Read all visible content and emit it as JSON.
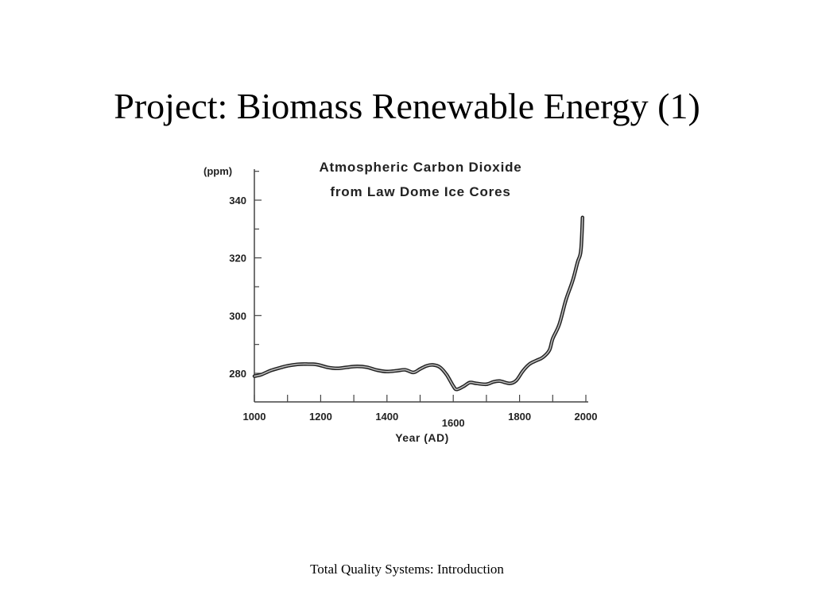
{
  "slide": {
    "title": "Project: Biomass Renewable Energy (1)",
    "footer": "Total Quality Systems: Introduction"
  },
  "chart_data": {
    "type": "line",
    "title_lines": [
      "Atmospheric Carbon Dioxide",
      "from Law Dome Ice Cores"
    ],
    "xlabel": "Year (AD)",
    "ylabel": "(ppm)",
    "xlim": [
      1000,
      2000
    ],
    "ylim": [
      270,
      350
    ],
    "xticks": [
      1000,
      1200,
      1400,
      1600,
      1800,
      2000
    ],
    "yticks": [
      280,
      300,
      320,
      340
    ],
    "grid": false,
    "line_color": "#444444",
    "series": [
      {
        "x": [
          1000,
          1020,
          1050,
          1080,
          1100,
          1130,
          1160,
          1190,
          1220,
          1250,
          1280,
          1310,
          1340,
          1370,
          1400,
          1430,
          1455,
          1480,
          1500,
          1520,
          1540,
          1560,
          1580,
          1600,
          1610,
          1630,
          1650,
          1670,
          1700,
          1720,
          1740,
          1770,
          1790,
          1810,
          1830,
          1850,
          1870,
          1890,
          1900,
          1920,
          1940,
          1960,
          1975,
          1985,
          1990
        ],
        "y": [
          279,
          279.5,
          281,
          282,
          282.6,
          283.1,
          283.2,
          283,
          282.1,
          281.7,
          282.1,
          282.4,
          282.1,
          281.1,
          280.6,
          280.9,
          281.2,
          280.3,
          281.5,
          282.6,
          282.9,
          282.1,
          279.5,
          275.6,
          274.4,
          275.4,
          276.8,
          276.5,
          276.2,
          277,
          277.3,
          276.5,
          277.5,
          280.8,
          283.2,
          284.4,
          285.5,
          288,
          292,
          297,
          305.5,
          312,
          318.5,
          322.5,
          334
        ]
      }
    ]
  }
}
